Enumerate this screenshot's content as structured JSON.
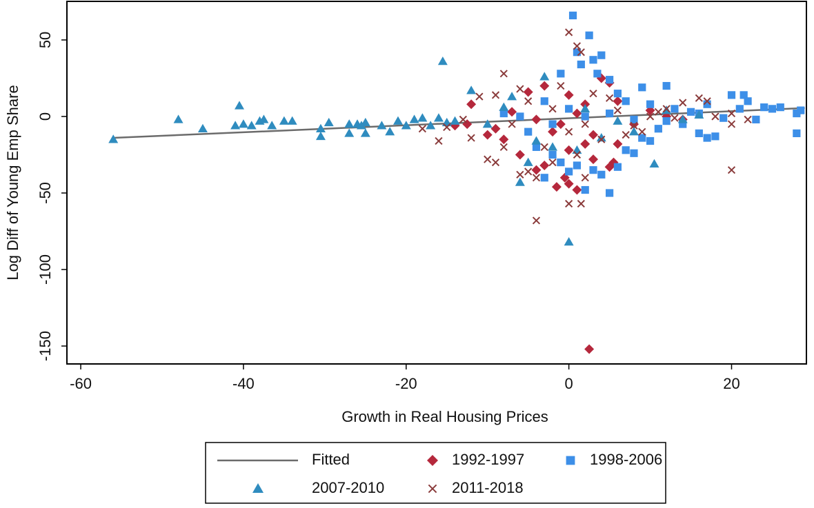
{
  "chart_data": {
    "type": "scatter",
    "x_label": "Growth in Real Housing Prices",
    "y_label": "Log Diff of Young Emp Share",
    "xlim": [
      -61.7,
      29.2
    ],
    "ylim": [
      -161.7,
      75.2
    ],
    "xticks": [
      -60,
      -40,
      -20,
      0,
      20
    ],
    "yticks": [
      -150,
      -100,
      -50,
      0,
      50
    ],
    "series": [
      {
        "name": "Fitted",
        "type": "line",
        "color": "#6b6b6b",
        "x": [
          -56,
          29
        ],
        "values": [
          -14,
          5.5
        ]
      },
      {
        "name": "1992-1997",
        "type": "scatter",
        "marker": "diamond",
        "color": "#b5283c",
        "x": [
          2.5,
          1,
          0,
          -0.5,
          -1.5,
          -3,
          -4,
          3,
          5,
          5.5,
          -6,
          -8,
          -10,
          -12,
          -12.5,
          -14,
          -5,
          -3,
          0,
          2,
          4,
          5,
          6,
          8,
          10,
          12,
          14,
          -2,
          -1,
          1,
          -4,
          3,
          -7,
          -9,
          6,
          0,
          2
        ],
        "values": [
          -152,
          -48,
          -44,
          -40,
          -46,
          -32,
          -35,
          -28,
          -33,
          -30,
          -25,
          -15,
          -12,
          8,
          -5,
          -6,
          16,
          20,
          14,
          8,
          25,
          22,
          10,
          -5,
          4,
          0,
          -2,
          -10,
          -5,
          2,
          -2,
          -12,
          3,
          -8,
          -18,
          -22,
          -18
        ]
      },
      {
        "name": "1998-2006",
        "type": "scatter",
        "marker": "square",
        "color": "#3d8fe8",
        "x": [
          0.5,
          2.5,
          1,
          4,
          3,
          1.5,
          3.5,
          -1,
          5,
          6,
          7,
          9,
          10,
          12,
          13,
          15,
          17,
          19,
          20,
          21,
          21.5,
          22,
          23,
          24,
          25,
          26,
          28,
          28.5,
          28,
          18,
          17,
          16,
          14,
          11,
          10,
          9,
          8,
          7,
          6,
          5,
          4,
          3,
          2,
          1,
          0,
          -1,
          -2,
          -3,
          -4,
          -2,
          -5,
          -6,
          -8,
          -3,
          0,
          2,
          5,
          8,
          12,
          16
        ],
        "values": [
          66,
          53,
          42,
          40,
          37,
          34,
          28,
          28,
          24,
          15,
          10,
          19,
          8,
          20,
          5,
          3,
          8,
          -1,
          14,
          5,
          14,
          10,
          -2,
          6,
          5,
          6,
          2,
          4,
          -11,
          -13,
          -14,
          -11,
          -5,
          -8,
          -16,
          -14,
          -24,
          -22,
          -33,
          -50,
          -38,
          -35,
          -48,
          -32,
          -36,
          -30,
          -25,
          -40,
          -20,
          -5,
          -10,
          0,
          2,
          10,
          5,
          0,
          2,
          -2,
          -3,
          2
        ]
      },
      {
        "name": "2007-2010",
        "type": "scatter",
        "marker": "triangle",
        "color": "#2f8cbf",
        "x": [
          -56,
          -48,
          -45,
          -40.5,
          -41,
          -40,
          -39,
          -38,
          -37.5,
          -36.5,
          -35,
          -34,
          -30.5,
          -30.5,
          -29.5,
          -27,
          -27,
          -26,
          -25.5,
          -25,
          -25,
          -23,
          -22,
          -21,
          -20,
          -19,
          -18,
          -17,
          -16,
          -15.5,
          -15,
          -14,
          -12,
          -10,
          -8,
          -7,
          -6,
          -5,
          -4,
          -3,
          -2,
          0,
          1,
          2,
          4,
          6,
          8,
          10.5,
          12,
          14,
          16
        ],
        "values": [
          -15,
          -2,
          -8,
          7,
          -6,
          -5,
          -6,
          -3,
          -2,
          -6,
          -3,
          -3,
          -8,
          -13,
          -4,
          -11,
          -5,
          -5,
          -6,
          -11,
          -4,
          -6,
          -10,
          -3,
          -6,
          -2,
          -1,
          -6,
          -1,
          36,
          -4,
          -3,
          17,
          -5,
          6,
          13,
          -43,
          -30,
          -16,
          26,
          -20,
          -82,
          -22,
          5,
          -14,
          -3,
          -10,
          -31,
          4,
          -2,
          1
        ]
      },
      {
        "name": "2011-2018",
        "type": "scatter",
        "marker": "x",
        "color": "#8a3b3b",
        "x": [
          0,
          1,
          1.5,
          -4,
          1.5,
          0,
          2,
          -8,
          -9,
          -10,
          -8,
          -6,
          -5,
          -4,
          -16,
          -15,
          -13,
          -11,
          -9,
          20,
          20,
          20,
          22,
          17,
          16,
          14,
          12,
          10,
          8,
          6,
          4,
          2,
          0,
          -2,
          -3,
          -5,
          -7,
          -12,
          -18,
          3,
          5,
          7,
          -1,
          -6,
          9,
          11,
          13,
          18,
          1,
          -2
        ],
        "values": [
          55,
          46,
          42,
          -68,
          -57,
          -57,
          -40,
          28,
          -30,
          -28,
          -20,
          -38,
          -36,
          -40,
          -16,
          -7,
          -2,
          13,
          14,
          -35,
          -5,
          2,
          -2,
          10,
          12,
          9,
          5,
          0,
          -6,
          4,
          -15,
          -5,
          -10,
          5,
          -20,
          10,
          -5,
          -14,
          -8,
          15,
          12,
          -12,
          20,
          18,
          -10,
          3,
          -1,
          0,
          -25,
          -30
        ]
      }
    ]
  }
}
